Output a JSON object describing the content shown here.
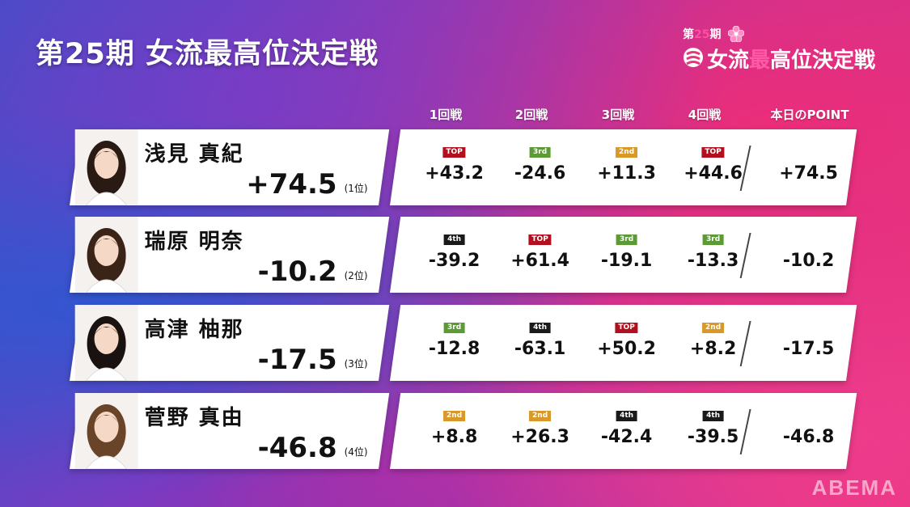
{
  "title": "第25期 女流最高位決定戦",
  "logo": {
    "episode_prefix": "第",
    "episode_num": "25",
    "episode_suffix": "期",
    "name_part1": "女流",
    "name_part2": "最",
    "name_part3": "高位決定戦"
  },
  "headers": [
    "1回戦",
    "2回戦",
    "3回戦",
    "4回戦",
    "本日のPOINT"
  ],
  "players": [
    {
      "name": "浅見 真紀",
      "total": "+74.5",
      "rank": "(1位)",
      "games": [
        {
          "badge": "TOP",
          "score": "+43.2"
        },
        {
          "badge": "3rd",
          "score": "-24.6"
        },
        {
          "badge": "2nd",
          "score": "+11.3"
        },
        {
          "badge": "TOP",
          "score": "+44.6"
        }
      ],
      "day_point": "+74.5"
    },
    {
      "name": "瑞原 明奈",
      "total": "-10.2",
      "rank": "(2位)",
      "games": [
        {
          "badge": "4th",
          "score": "-39.2"
        },
        {
          "badge": "TOP",
          "score": "+61.4"
        },
        {
          "badge": "3rd",
          "score": "-19.1"
        },
        {
          "badge": "3rd",
          "score": "-13.3"
        }
      ],
      "day_point": "-10.2"
    },
    {
      "name": "高津 柚那",
      "total": "-17.5",
      "rank": "(3位)",
      "games": [
        {
          "badge": "3rd",
          "score": "-12.8"
        },
        {
          "badge": "4th",
          "score": "-63.1"
        },
        {
          "badge": "TOP",
          "score": "+50.2"
        },
        {
          "badge": "2nd",
          "score": "+8.2"
        }
      ],
      "day_point": "-17.5"
    },
    {
      "name": "菅野 真由",
      "total": "-46.8",
      "rank": "(4位)",
      "games": [
        {
          "badge": "2nd",
          "score": "+8.8"
        },
        {
          "badge": "2nd",
          "score": "+26.3"
        },
        {
          "badge": "4th",
          "score": "-42.4"
        },
        {
          "badge": "4th",
          "score": "-39.5"
        }
      ],
      "day_point": "-46.8"
    }
  ],
  "watermark": "ABEMA",
  "colors": {
    "top": "#b3101f",
    "2nd": "#d9992a",
    "3rd": "#5b9a35",
    "4th": "#1a1a1a"
  }
}
